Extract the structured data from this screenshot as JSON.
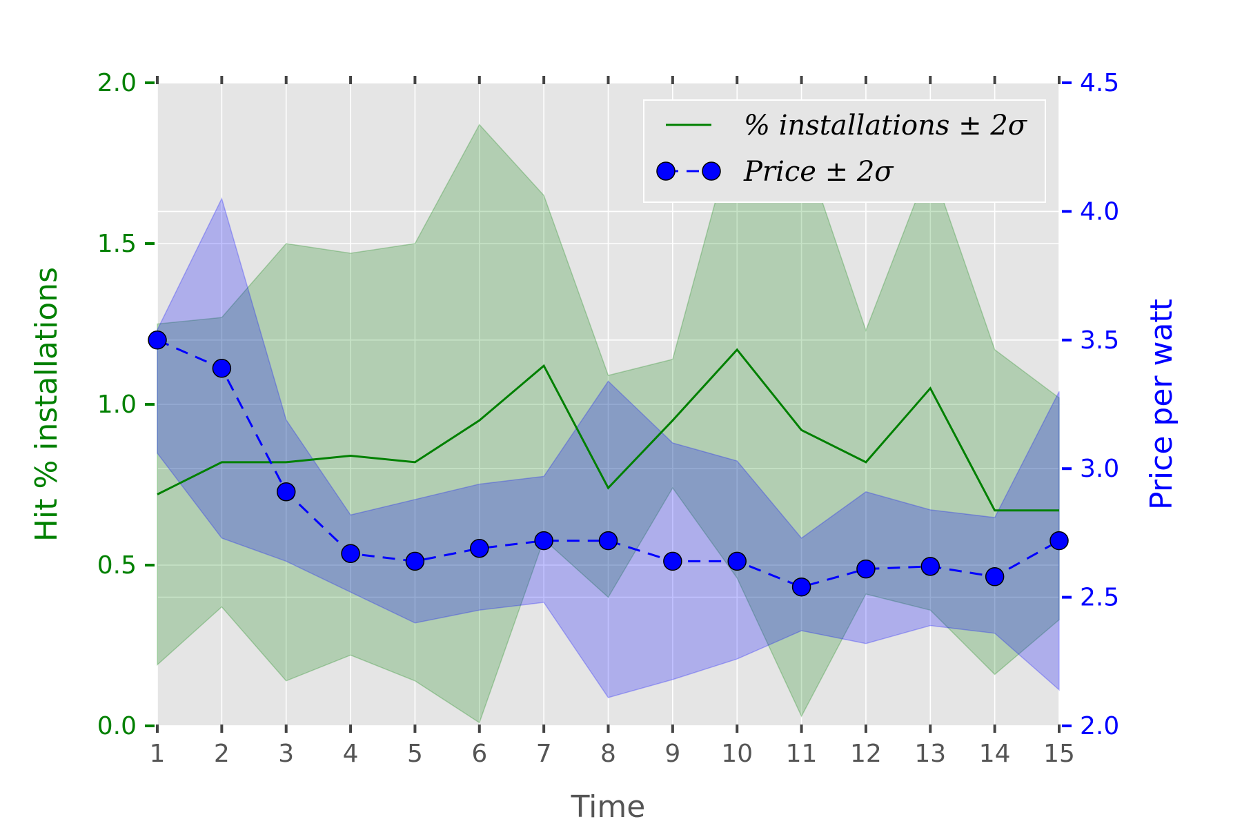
{
  "chart_data": {
    "type": "line",
    "x": [
      1,
      2,
      3,
      4,
      5,
      6,
      7,
      8,
      9,
      10,
      11,
      12,
      13,
      14,
      15
    ],
    "xlabel": "Time",
    "xlim": [
      1,
      15
    ],
    "x_ticks": [
      "1",
      "2",
      "3",
      "4",
      "5",
      "6",
      "7",
      "8",
      "9",
      "10",
      "11",
      "12",
      "13",
      "14",
      "15"
    ],
    "grid": true,
    "legend_placement": "upper-right",
    "background_color": "#e5e5e5",
    "axes": {
      "left": {
        "label": "Hit % installations",
        "ylim": [
          0.0,
          2.0
        ],
        "ticks": [
          "0.0",
          "0.5",
          "1.0",
          "1.5",
          "2.0"
        ],
        "color": "#008000"
      },
      "right": {
        "label": "Price per watt",
        "ylim": [
          2.0,
          4.5
        ],
        "ticks": [
          "2.0",
          "2.5",
          "3.0",
          "3.5",
          "4.0",
          "4.5"
        ],
        "color": "#0000ff"
      }
    },
    "series": [
      {
        "name": "% installations ± 2σ",
        "axis": "left",
        "style": "solid-line",
        "color": "#008000",
        "band_color": "#008000",
        "values": [
          0.72,
          0.82,
          0.82,
          0.84,
          0.82,
          0.95,
          1.12,
          0.74,
          0.95,
          1.17,
          0.92,
          0.82,
          1.05,
          0.67,
          0.67
        ],
        "band_lower": [
          0.19,
          0.37,
          0.14,
          0.22,
          0.14,
          0.01,
          0.58,
          0.4,
          0.74,
          0.46,
          0.03,
          0.41,
          0.36,
          0.16,
          0.33
        ],
        "band_upper": [
          1.25,
          1.27,
          1.5,
          1.47,
          1.5,
          1.87,
          1.65,
          1.09,
          1.14,
          1.88,
          1.82,
          1.23,
          1.75,
          1.17,
          1.02
        ]
      },
      {
        "name": "Price ± 2σ",
        "axis": "right",
        "style": "dashed-line-circle-markers",
        "color": "#0000ff",
        "band_color": "#0000ff",
        "values": [
          3.5,
          3.39,
          2.91,
          2.67,
          2.64,
          2.69,
          2.72,
          2.72,
          2.64,
          2.64,
          2.54,
          2.61,
          2.62,
          2.58,
          2.72
        ],
        "band_lower": [
          3.06,
          2.73,
          2.64,
          2.52,
          2.4,
          2.45,
          2.48,
          2.11,
          2.18,
          2.26,
          2.37,
          2.32,
          2.39,
          2.36,
          2.14
        ],
        "band_upper": [
          3.54,
          4.05,
          3.19,
          2.82,
          2.88,
          2.94,
          2.97,
          3.34,
          3.1,
          3.03,
          2.73,
          2.91,
          2.84,
          2.81,
          3.3
        ]
      }
    ]
  }
}
